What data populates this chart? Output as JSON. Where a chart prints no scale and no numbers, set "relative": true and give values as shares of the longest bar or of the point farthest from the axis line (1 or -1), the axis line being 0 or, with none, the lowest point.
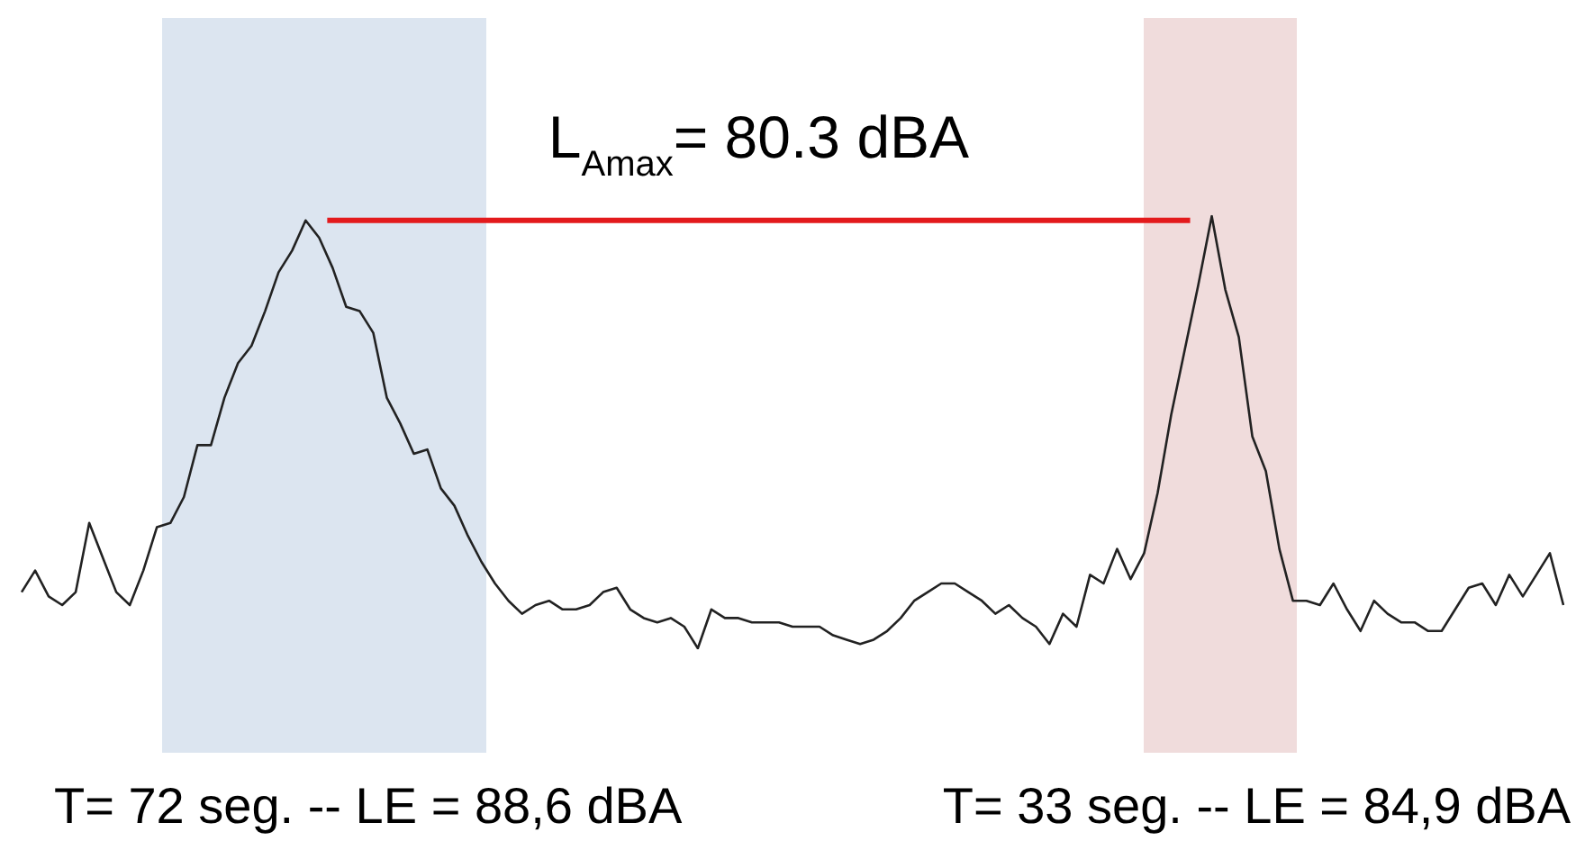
{
  "chart_data": {
    "type": "line",
    "relative": true,
    "categories": [
      null,
      null,
      null,
      null,
      null,
      null,
      null,
      null,
      null,
      null,
      null,
      null,
      null,
      null,
      null,
      null,
      null,
      null,
      null,
      null,
      null,
      null,
      null,
      null,
      null,
      null,
      null,
      null,
      null,
      null,
      null,
      null,
      null,
      null,
      null,
      null,
      null,
      null,
      null,
      null,
      null,
      null,
      null,
      null,
      null,
      null,
      null,
      null,
      null,
      null,
      null,
      null,
      null,
      null,
      null,
      null,
      null,
      null,
      null,
      null,
      null,
      null,
      null,
      null,
      null,
      null,
      null,
      null,
      null,
      null,
      null,
      null,
      null,
      null,
      null,
      null,
      null,
      null,
      null,
      null,
      null,
      null,
      null,
      null,
      null,
      null,
      null,
      null,
      null,
      null,
      null,
      null,
      null,
      null,
      null,
      null,
      null,
      null,
      null,
      null,
      null,
      null,
      null,
      null,
      null,
      null,
      null,
      null,
      null,
      null,
      null,
      null,
      null,
      null,
      null
    ],
    "series": [
      {
        "color": "#222222",
        "values": [
          0.13,
          0.18,
          0.12,
          0.1,
          0.13,
          0.29,
          0.21,
          0.13,
          0.1,
          0.18,
          0.28,
          0.29,
          0.35,
          0.47,
          0.47,
          0.58,
          0.66,
          0.7,
          0.78,
          0.87,
          0.92,
          0.99,
          0.95,
          0.88,
          0.79,
          0.78,
          0.73,
          0.58,
          0.52,
          0.45,
          0.46,
          0.37,
          0.33,
          0.26,
          0.2,
          0.15,
          0.11,
          0.08,
          0.1,
          0.11,
          0.09,
          0.09,
          0.1,
          0.13,
          0.14,
          0.09,
          0.07,
          0.06,
          0.07,
          0.05,
          0,
          0.09,
          0.07,
          0.07,
          0.06,
          0.06,
          0.06,
          0.05,
          0.05,
          0.05,
          0.03,
          0.02,
          0.01,
          0.02,
          0.04,
          0.07,
          0.11,
          0.13,
          0.15,
          0.15,
          0.13,
          0.11,
          0.08,
          0.1,
          0.07,
          0.05,
          0.01,
          0.08,
          0.05,
          0.17,
          0.15,
          0.23,
          0.16,
          0.22,
          0.36,
          0.54,
          0.69,
          0.84,
          1,
          0.83,
          0.72,
          0.49,
          0.41,
          0.23,
          0.11,
          0.11,
          0.1,
          0.15,
          0.09,
          0.04,
          0.11,
          0.08,
          0.06,
          0.06,
          0.04,
          0.04,
          0.09,
          0.14,
          0.15,
          0.1,
          0.17,
          0.12,
          0.17,
          0.22,
          0.1
        ]
      }
    ],
    "ref_lines": [
      {
        "axis": "y",
        "value": 0.99,
        "color": "#e31a1c"
      }
    ],
    "annotations": [
      "L$_{Amax}$= 80.3 dBA",
      "T= 72 seg. -- LE = 88,6 dBA",
      "T= 33 seg. -- LE = 84,9 dBA"
    ]
  }
}
